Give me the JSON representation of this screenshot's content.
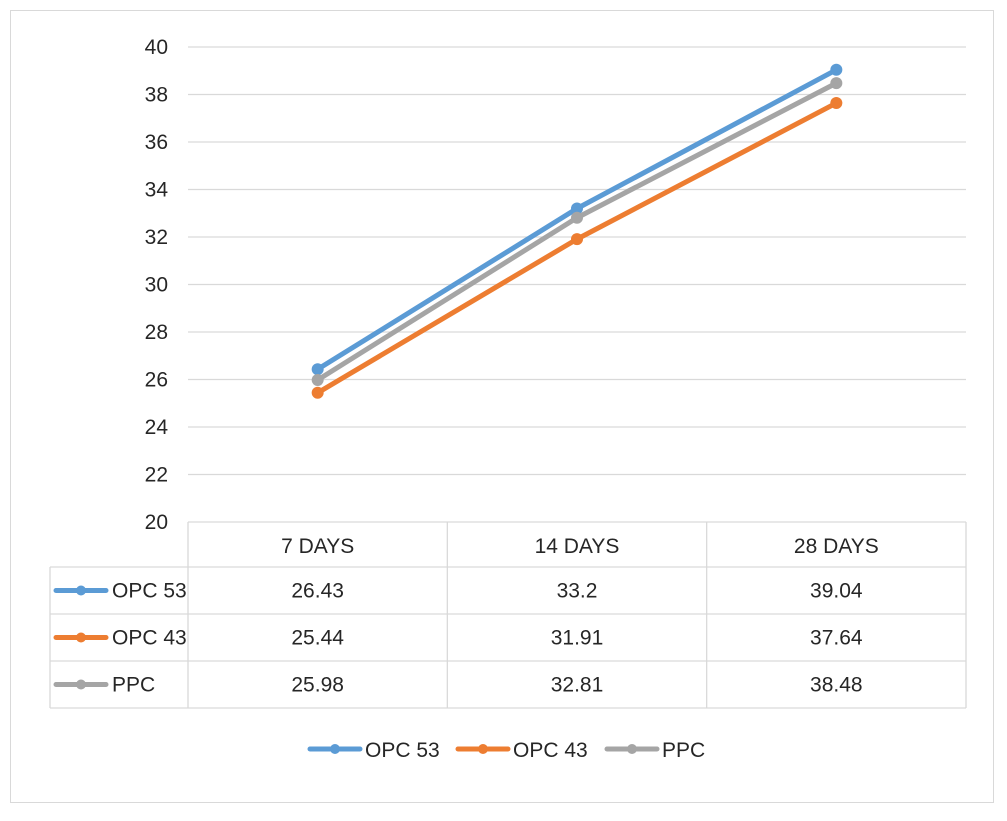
{
  "chart_data": {
    "type": "line",
    "categories": [
      "7 DAYS",
      "14 DAYS",
      "28 DAYS"
    ],
    "series": [
      {
        "name": "OPC 53",
        "values": [
          26.43,
          33.2,
          39.04
        ],
        "color": "#5b9bd5"
      },
      {
        "name": "OPC 43",
        "values": [
          25.44,
          31.91,
          37.64
        ],
        "color": "#ed7d31"
      },
      {
        "name": "PPC",
        "values": [
          25.98,
          32.81,
          38.48
        ],
        "color": "#a5a5a5"
      }
    ],
    "ylim": [
      20,
      40
    ],
    "yticks": [
      20,
      22,
      24,
      26,
      28,
      30,
      32,
      34,
      36,
      38,
      40
    ],
    "grid": true,
    "data_table": true,
    "legend_position": "bottom"
  }
}
